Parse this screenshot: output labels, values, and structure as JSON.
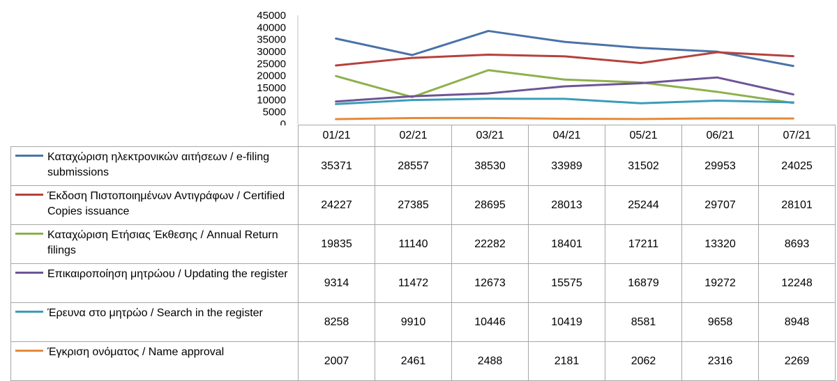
{
  "chart_data": {
    "type": "line",
    "categories": [
      "01/21",
      "02/21",
      "03/21",
      "04/21",
      "05/21",
      "06/21",
      "07/21"
    ],
    "ylim": [
      0,
      45000
    ],
    "yticks": [
      "45000",
      "40000",
      "35000",
      "30000",
      "25000",
      "20000",
      "15000",
      "10000",
      "5000",
      "0"
    ],
    "grid": false,
    "legend": "data-table",
    "series": [
      {
        "name": "Καταχώριση ηλεκτρονικών αιτήσεων / e-filing submissions",
        "color": "#4a72a8",
        "values": [
          35371,
          28557,
          38530,
          33989,
          31502,
          29953,
          24025
        ]
      },
      {
        "name": "Έκδοση Πιστοποιημένων Αντιγράφων / Certified Copies issuance",
        "color": "#b5413c",
        "values": [
          24227,
          27385,
          28695,
          28013,
          25244,
          29707,
          28101
        ]
      },
      {
        "name": "Καταχώριση Ετήσιας Έκθεσης / Annual Return filings",
        "color": "#8db04c",
        "values": [
          19835,
          11140,
          22282,
          18401,
          17211,
          13320,
          8693
        ]
      },
      {
        "name": "Επικαιροποίηση μητρώου / Updating the register",
        "color": "#6e5496",
        "values": [
          9314,
          11472,
          12673,
          15575,
          16879,
          19272,
          12248
        ]
      },
      {
        "name": "Έρευνα στο μητρώο / Search in the register",
        "color": "#3c9cb8",
        "values": [
          8258,
          9910,
          10446,
          10419,
          8581,
          9658,
          8948
        ]
      },
      {
        "name": "Έγκριση ονόματος / Name approval",
        "color": "#e48a3c",
        "values": [
          2007,
          2461,
          2488,
          2181,
          2062,
          2316,
          2269
        ]
      }
    ]
  }
}
